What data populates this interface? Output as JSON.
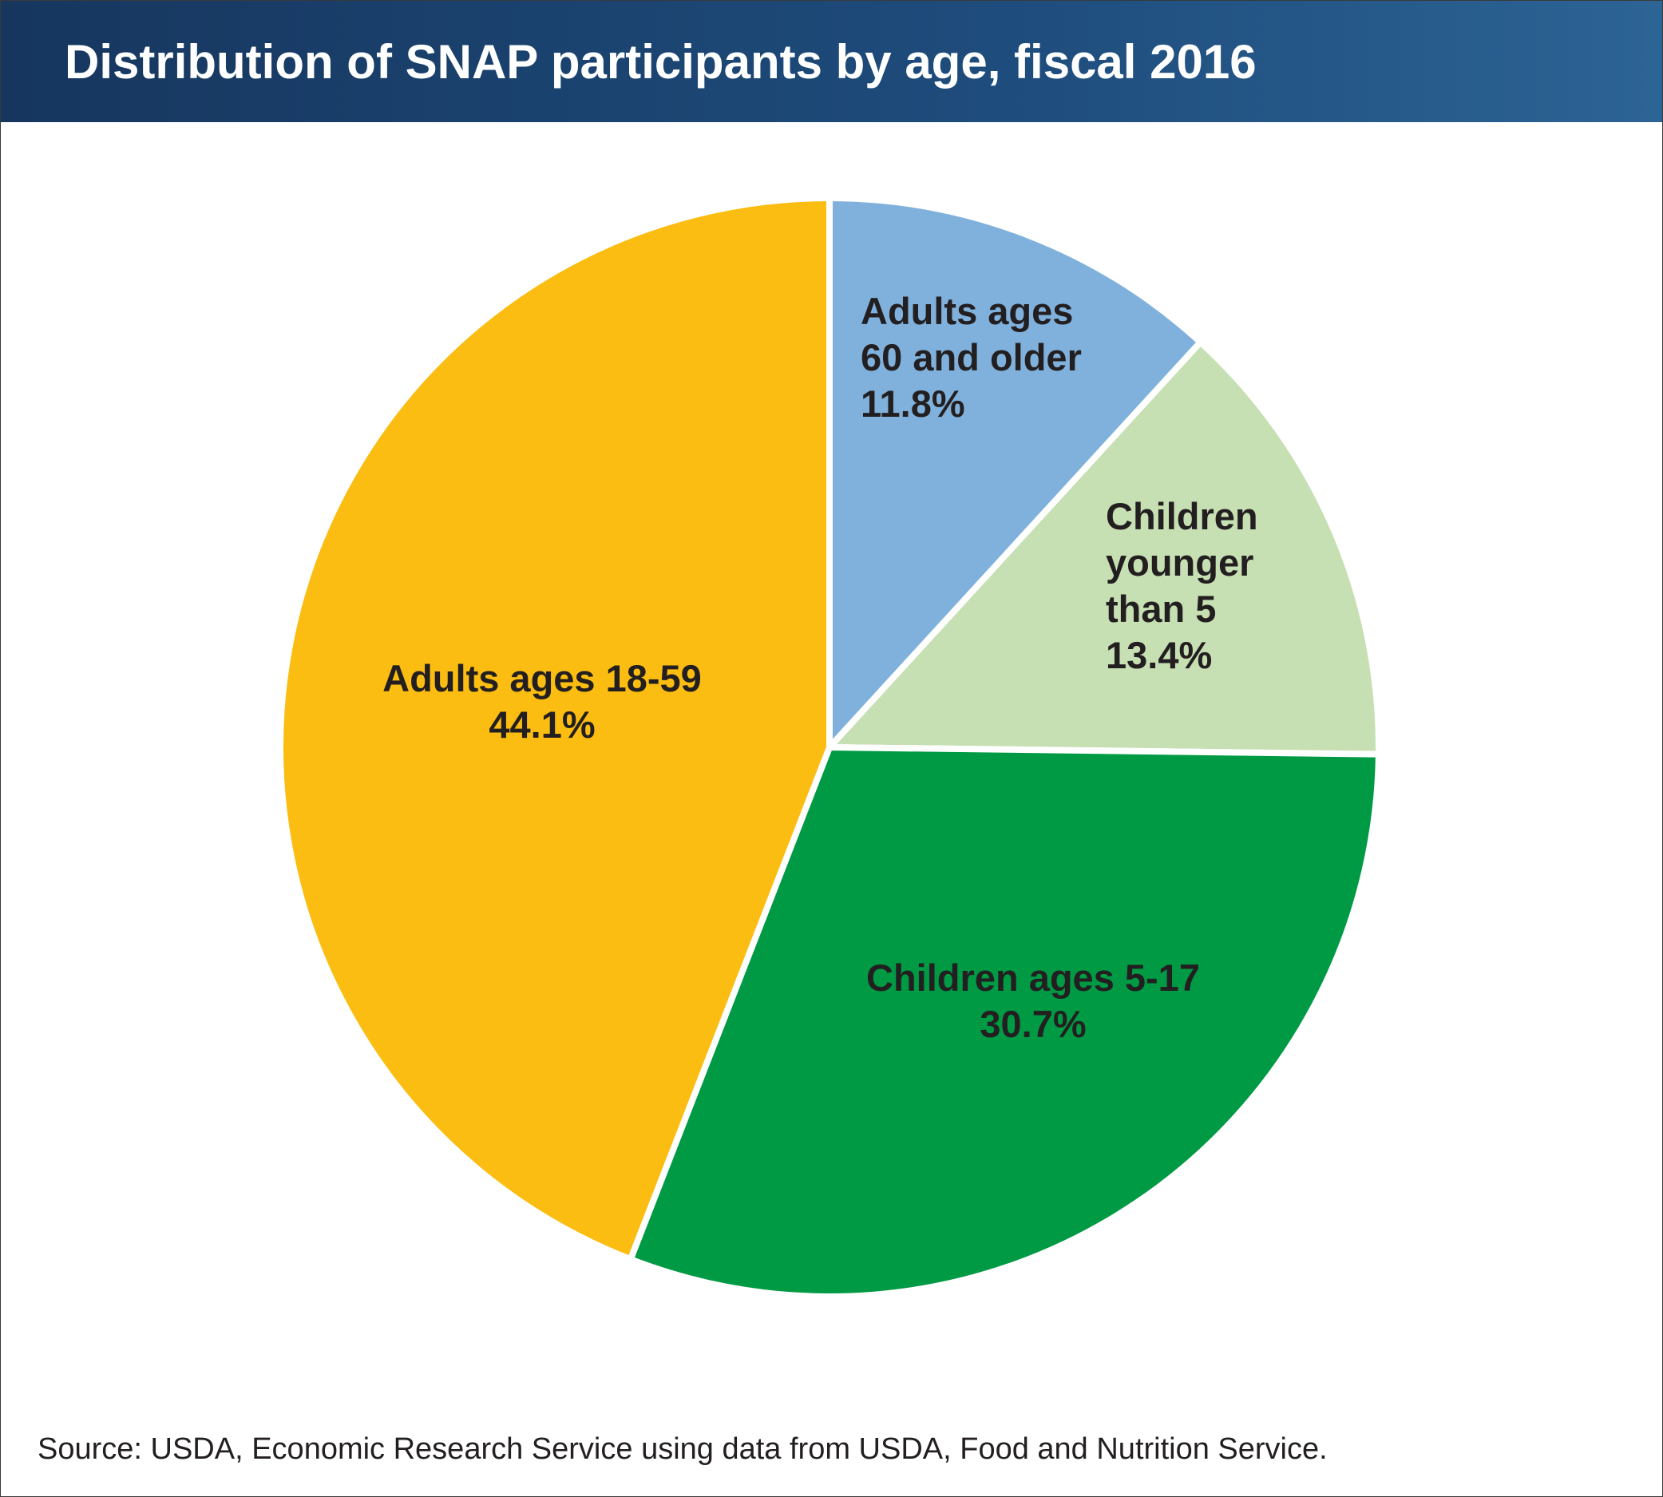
{
  "title": "Distribution of SNAP participants by age, fiscal 2016",
  "source": "Source: USDA, Economic Research Service using data from USDA, Food and Nutrition Service.",
  "colors": {
    "header": "#1e4c7c",
    "adults_60_plus": "#7fb1dc",
    "children_under_5": "#c6dfb3",
    "children_5_17": "#009a44",
    "adults_18_59": "#fbbd12"
  },
  "chart_data": {
    "type": "pie",
    "title": "Distribution of SNAP participants by age, fiscal 2016",
    "unit": "%",
    "start_angle_deg": 0,
    "direction": "clockwise",
    "slices": [
      {
        "id": "adults-60-plus",
        "label_lines": [
          "Adults ages",
          "60 and older",
          "11.8%"
        ],
        "label_align": "start",
        "value": 11.8,
        "color": "#7fb1dc"
      },
      {
        "id": "children-under-5",
        "label_lines": [
          "Children",
          "younger",
          "than 5",
          "13.4%"
        ],
        "label_align": "start",
        "value": 13.4,
        "color": "#c6dfb3"
      },
      {
        "id": "children-5-17",
        "label_lines": [
          "Children ages 5-17",
          "30.7%"
        ],
        "label_align": "middle",
        "value": 30.7,
        "color": "#009a44"
      },
      {
        "id": "adults-18-59",
        "label_lines": [
          "Adults ages 18-59",
          "44.1%"
        ],
        "label_align": "middle",
        "value": 44.1,
        "color": "#fbbd12"
      }
    ]
  }
}
